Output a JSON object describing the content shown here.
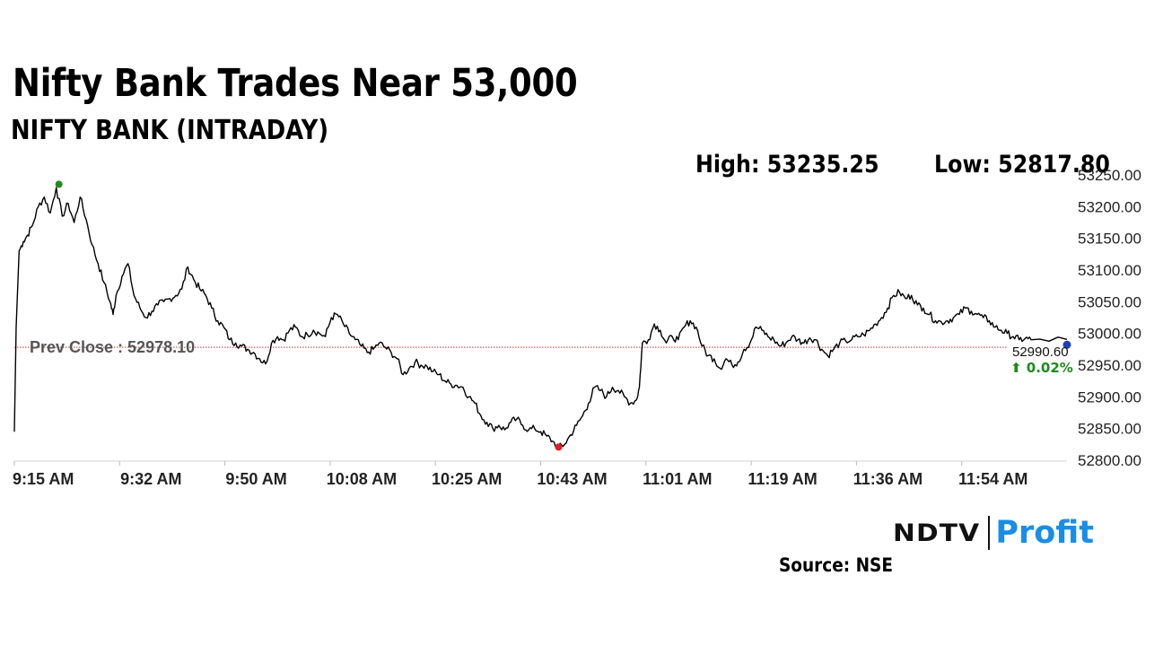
{
  "header": {
    "title": "Nifty Bank Trades Near 53,000",
    "subtitle": "NIFTY BANK (INTRADAY)"
  },
  "stats": {
    "high_label": "High: 53235.25",
    "low_label": "Low: 52817.80"
  },
  "footer": {
    "logo_left": "NDTV",
    "logo_right": "Profit",
    "source": "Source: NSE"
  },
  "colors": {
    "line": "#000000",
    "prev_close_line": "#c0392b",
    "high_marker": "#1e8b1e",
    "low_marker": "#e02020",
    "last_marker": "#1f3fbf",
    "change_positive": "#1e8b1e",
    "logo_accent": "#1a8ee6"
  },
  "chart_data": {
    "type": "line",
    "title": "NIFTY BANK (INTRADAY)",
    "xlabel": "",
    "ylabel": "",
    "x_ticks": [
      "9:15 AM",
      "9:32 AM",
      "9:50 AM",
      "10:08 AM",
      "10:25 AM",
      "10:43 AM",
      "11:01 AM",
      "11:19 AM",
      "11:36 AM",
      "11:54 AM"
    ],
    "y_ticks": [
      "53250.00",
      "53200.00",
      "53150.00",
      "53100.00",
      "53050.00",
      "53000.00",
      "52950.00",
      "52900.00",
      "52850.00",
      "52800.00"
    ],
    "ylim": [
      52800,
      53250
    ],
    "x_range_minutes": [
      0,
      176
    ],
    "grid": false,
    "prev_close": 52978.1,
    "prev_close_label": "Prev Close : 52978.10",
    "high": {
      "time_minutes": 7,
      "value": 53235.25
    },
    "low": {
      "time_minutes": 91,
      "value": 52817.8
    },
    "last_value_label": "52990.60",
    "change_label": "⬆ 0.02%",
    "series": [
      {
        "points": [
          [
            0,
            52845
          ],
          [
            0.3,
            53010
          ],
          [
            0.8,
            53130
          ],
          [
            1.5,
            53145
          ],
          [
            2.2,
            53155
          ],
          [
            3,
            53170
          ],
          [
            4,
            53200
          ],
          [
            5,
            53215
          ],
          [
            6,
            53190
          ],
          [
            7,
            53230
          ],
          [
            8,
            53185
          ],
          [
            9,
            53205
          ],
          [
            10,
            53175
          ],
          [
            11,
            53215
          ],
          [
            12,
            53180
          ],
          [
            13,
            53140
          ],
          [
            14,
            53110
          ],
          [
            15,
            53080
          ],
          [
            16,
            53050
          ],
          [
            16.5,
            53030
          ],
          [
            17,
            53060
          ],
          [
            18,
            53090
          ],
          [
            19,
            53110
          ],
          [
            20,
            53060
          ],
          [
            21,
            53040
          ],
          [
            22,
            53025
          ],
          [
            23,
            53035
          ],
          [
            24,
            53045
          ],
          [
            25,
            53050
          ],
          [
            26,
            53055
          ],
          [
            27,
            53060
          ],
          [
            28,
            53070
          ],
          [
            29,
            53105
          ],
          [
            30,
            53085
          ],
          [
            31,
            53070
          ],
          [
            32,
            53060
          ],
          [
            33,
            53040
          ],
          [
            34,
            53020
          ],
          [
            35,
            53010
          ],
          [
            36,
            52990
          ],
          [
            37,
            52985
          ],
          [
            38,
            52980
          ],
          [
            39,
            52975
          ],
          [
            40,
            52970
          ],
          [
            41,
            52960
          ],
          [
            42,
            52952
          ],
          [
            43,
            52985
          ],
          [
            44,
            52995
          ],
          [
            45,
            52990
          ],
          [
            46,
            53005
          ],
          [
            47,
            53010
          ],
          [
            48,
            52995
          ],
          [
            49,
            52998
          ],
          [
            50,
            53005
          ],
          [
            51,
            53000
          ],
          [
            52,
            52995
          ],
          [
            53,
            53025
          ],
          [
            54,
            53030
          ],
          [
            55,
            53015
          ],
          [
            56,
            53000
          ],
          [
            57,
            52990
          ],
          [
            58,
            52980
          ],
          [
            59,
            52970
          ],
          [
            60,
            52975
          ],
          [
            61,
            52985
          ],
          [
            62,
            52978
          ],
          [
            63,
            52970
          ],
          [
            64,
            52960
          ],
          [
            65,
            52935
          ],
          [
            66,
            52945
          ],
          [
            67,
            52955
          ],
          [
            68,
            52950
          ],
          [
            69,
            52948
          ],
          [
            70,
            52940
          ],
          [
            71,
            52935
          ],
          [
            72,
            52925
          ],
          [
            73,
            52920
          ],
          [
            74,
            52918
          ],
          [
            75,
            52915
          ],
          [
            76,
            52900
          ],
          [
            77,
            52890
          ],
          [
            78,
            52870
          ],
          [
            79,
            52860
          ],
          [
            80,
            52850
          ],
          [
            81,
            52855
          ],
          [
            82,
            52848
          ],
          [
            83,
            52860
          ],
          [
            84,
            52865
          ],
          [
            85,
            52855
          ],
          [
            86,
            52848
          ],
          [
            87,
            52850
          ],
          [
            88,
            52845
          ],
          [
            89,
            52838
          ],
          [
            90,
            52830
          ],
          [
            91,
            52820
          ],
          [
            92,
            52825
          ],
          [
            93,
            52840
          ],
          [
            94,
            52855
          ],
          [
            95,
            52870
          ],
          [
            96,
            52890
          ],
          [
            97,
            52915
          ],
          [
            98,
            52910
          ],
          [
            99,
            52900
          ],
          [
            100,
            52915
          ],
          [
            101,
            52910
          ],
          [
            102,
            52900
          ],
          [
            103,
            52890
          ],
          [
            104,
            52895
          ],
          [
            104.5,
            52915
          ],
          [
            105,
            52985
          ],
          [
            106,
            52990
          ],
          [
            107,
            53015
          ],
          [
            108,
            53005
          ],
          [
            109,
            52985
          ],
          [
            110,
            52995
          ],
          [
            111,
            52990
          ],
          [
            112,
            53010
          ],
          [
            113,
            53020
          ],
          [
            114,
            53010
          ],
          [
            115,
            52980
          ],
          [
            116,
            52965
          ],
          [
            117,
            52960
          ],
          [
            118,
            52945
          ],
          [
            119,
            52960
          ],
          [
            120,
            52950
          ],
          [
            121,
            52955
          ],
          [
            122,
            52975
          ],
          [
            123,
            52985
          ],
          [
            124,
            53010
          ],
          [
            125,
            53005
          ],
          [
            126,
            52995
          ],
          [
            127,
            52990
          ],
          [
            128,
            52980
          ],
          [
            129,
            52985
          ],
          [
            130,
            52995
          ],
          [
            131,
            52990
          ],
          [
            132,
            52985
          ],
          [
            133,
            52993
          ],
          [
            134,
            52990
          ],
          [
            135,
            52975
          ],
          [
            136,
            52965
          ],
          [
            137,
            52975
          ],
          [
            138,
            52985
          ],
          [
            139,
            52988
          ],
          [
            140,
            52990
          ],
          [
            141,
            52995
          ],
          [
            142,
            52998
          ],
          [
            143,
            53005
          ],
          [
            144,
            53015
          ],
          [
            145,
            53025
          ],
          [
            146,
            53040
          ],
          [
            147,
            53060
          ],
          [
            148,
            53065
          ],
          [
            149,
            53055
          ],
          [
            150,
            53060
          ],
          [
            151,
            53045
          ],
          [
            152,
            53040
          ],
          [
            153,
            53030
          ],
          [
            154,
            53020
          ],
          [
            155,
            53018
          ],
          [
            156,
            53020
          ],
          [
            157,
            53025
          ],
          [
            158,
            53030
          ],
          [
            159,
            53040
          ],
          [
            160,
            53035
          ],
          [
            161,
            53030
          ],
          [
            162,
            53025
          ],
          [
            163,
            53020
          ],
          [
            164,
            53010
          ],
          [
            165,
            53005
          ],
          [
            166,
            53000
          ],
          [
            167,
            52995
          ],
          [
            168,
            52990
          ],
          [
            169,
            52992
          ],
          [
            170,
            52990
          ],
          [
            176,
            52990.6
          ]
        ]
      }
    ]
  }
}
